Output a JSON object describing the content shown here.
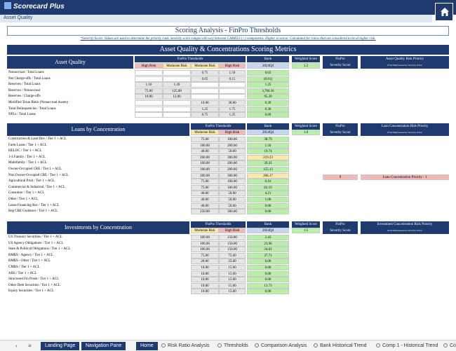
{
  "app": {
    "logo": "Scorecard Plus",
    "breadcrumb": "Asset Quality"
  },
  "title": "Scoring Analysis - FinPro Thresholds",
  "note": "*Severity Score: Values are used to determine the priority rank. Severity score ranges will vary between CAMELS (+) components. Higher is worse: Calculated for ratios that are considered to be at higher risk.",
  "banner": "Asset Quality & Concentrations Scoring Metrics",
  "sections": {
    "asset": {
      "title": "Asset Quality",
      "thresholds_label": "FinPro Thresholds",
      "sub_labels": [
        "High Risk",
        "Moderate Risk",
        "Moderate Risk",
        "High Risk"
      ],
      "bank_label": "Bank",
      "bank_period": "2024Q4",
      "weighted_label": "Weighted Score",
      "weighted_value": "1.2",
      "finpro_label": "FinPro",
      "severity_label": "Severity Score",
      "priority_label": "Asset Quality Risk Priority",
      "priority_note": "Prioritized based on Severity Score",
      "rows": [
        {
          "label": "Nonaccrual / Total Loans",
          "c1": "",
          "c2": "",
          "c3": "0.75",
          "c4": "1.50",
          "bank": "0.03"
        },
        {
          "label": "Net Charge-offs / Total Loans",
          "c1": "",
          "c2": "",
          "c3": "0.05",
          "c4": "0.15",
          "bank": "(0.01)"
        },
        {
          "label": "Reserves / Total Loans",
          "c1": "1.10",
          "c2": "1.20",
          "c3": "",
          "c4": "",
          "bank": "1.25"
        },
        {
          "label": "Reserves / Nonaccrual",
          "c1": "75.00",
          "c2": "125.00",
          "c3": "",
          "c4": "",
          "bank": "3,766.36"
        },
        {
          "label": "Reserves / Charge-offs",
          "c1": "10.00",
          "c2": "12.00",
          "c3": "",
          "c4": "",
          "bank": "95.39"
        },
        {
          "label": "Modified Texas Ratio (Nonaccrual Assets)",
          "c1": "",
          "c2": "",
          "c3": "10.00",
          "c4": "30.00",
          "bank": "0.39"
        },
        {
          "label": "Total Delinquencies / Total Loans",
          "c1": "",
          "c2": "",
          "c3": "1.25",
          "c4": "1.75",
          "bank": "0.30"
        },
        {
          "label": "NPLs / Total Loans",
          "c1": "",
          "c2": "",
          "c3": "0.75",
          "c4": "1.25",
          "bank": "0.09"
        }
      ]
    },
    "loans": {
      "title": "Loans by Concentration",
      "thresholds_label": "FinPro Thresholds",
      "sub_labels": [
        "Moderate Risk",
        "High Risk"
      ],
      "bank_label": "Bank",
      "bank_period": "2024Q4",
      "weighted_label": "Weighted Score",
      "weighted_value": "1.0",
      "finpro_label": "FinPro",
      "severity_label": "Severity Score",
      "priority_label": "Loan Concentration Risk Priority",
      "priority_note": "Prioritized based on Severity Score",
      "flag_severity": "9",
      "flag_priority": "Loan Concentration Priority - 1",
      "rows": [
        {
          "label": "Construction & Land Dev / Tier 1 + ACL",
          "m": "75.00",
          "h": "100.00",
          "bank": "38.79"
        },
        {
          "label": "Farm Loans / Tier 1 + ACL",
          "m": "100.00",
          "h": "200.00",
          "bank": "1.56"
        },
        {
          "label": "HELOC / Tier 1 + ACL",
          "m": "40.00",
          "h": "50.00",
          "bank": "19.74"
        },
        {
          "label": "1-4 Family / Tier 1 + ACL",
          "m": "200.00",
          "h": "300.00",
          "bank": "219.23"
        },
        {
          "label": "Multifamily / Tier 1 + ACL",
          "m": "100.00",
          "h": "200.00",
          "bank": "39.43"
        },
        {
          "label": "Owner-Occupied CRE / Tier 1 + ACL",
          "m": "100.00",
          "h": "200.00",
          "bank": "155.13"
        },
        {
          "label": "Non Owner-Occupied CRE / Tier 1 + ACL",
          "m": "200.00",
          "h": "300.00",
          "bank": "206.17"
        },
        {
          "label": "Agricultural Prod / Tier 1 + ACL",
          "m": "75.00",
          "h": "100.00",
          "bank": "0.16"
        },
        {
          "label": "Commercial & Industrial / Tier 1 + ACL",
          "m": "75.00",
          "h": "100.00",
          "bank": "82.19"
        },
        {
          "label": "Consumer / Tier 1 + ACL",
          "m": "40.00",
          "h": "50.00",
          "bank": "4.21"
        },
        {
          "label": "Other / Tier 1 + ACL",
          "m": "40.00",
          "h": "50.00",
          "bank": "1.00"
        },
        {
          "label": "Lease Financing Rec / Tier 1 + ACL",
          "m": "40.00",
          "h": "50.00",
          "bank": "0.00"
        },
        {
          "label": "Reg CRE Guidance / Tier 1 + ACL",
          "m": "250.00",
          "h": "300.00",
          "bank": "0.00"
        }
      ]
    },
    "invest": {
      "title": "Investments by Concentration",
      "thresholds_label": "FinPro Thresholds",
      "sub_labels": [
        "Moderate Risk",
        "High Risk"
      ],
      "bank_label": "Bank",
      "bank_period": "2024Q4",
      "weighted_label": "Weighted Score",
      "weighted_value": "1.5",
      "finpro_label": "FinPro",
      "severity_label": "Severity Score",
      "priority_label": "Investment Concentration Risk Priority",
      "priority_note": "Prioritized based on Severity Score",
      "rows": [
        {
          "label": "US Treasury Securities / Tier 1 + ACL",
          "m": "100.00",
          "h": "150.00",
          "bank": "2.43"
        },
        {
          "label": "US Agency Obligations / Tier 1 + ACL",
          "m": "100.00",
          "h": "150.00",
          "bank": "23.96"
        },
        {
          "label": "State & Political Obligations / Tier 1 + ACL",
          "m": "100.00",
          "h": "150.00",
          "bank": "34.03"
        },
        {
          "label": "RMBS - Agency / Tier 1 + ACL",
          "m": "75.00",
          "h": "75.00",
          "bank": "37.71"
        },
        {
          "label": "RMBS - Other / Tier 1 + ACL",
          "m": "20.00",
          "h": "25.00",
          "bank": "0.00"
        },
        {
          "label": "CMBS / Tier 1 + ACL",
          "m": "10.00",
          "h": "15.00",
          "bank": "0.00"
        },
        {
          "label": "ABS / Tier 1 + ACL",
          "m": "10.00",
          "h": "15.00",
          "bank": "0.00"
        },
        {
          "label": "Structured Fin Prods / Tier 1 + ACL",
          "m": "10.00",
          "h": "15.00",
          "bank": "0.00"
        },
        {
          "label": "Other Debt Securities / Tier 1 + ACL",
          "m": "10.00",
          "h": "15.00",
          "bank": "13.73"
        },
        {
          "label": "Equity Securities / Tier 1 + ACL",
          "m": "10.00",
          "h": "15.00",
          "bank": "0.00"
        }
      ]
    }
  },
  "tabs": [
    "Landing Page",
    "Navigation Pane",
    "Home",
    "Risk Ratio Analysis",
    "Thresholds",
    "Comparison Analysis",
    "Bank Historical Trend",
    "Comp 1 - Historical Trend",
    "Co"
  ]
}
